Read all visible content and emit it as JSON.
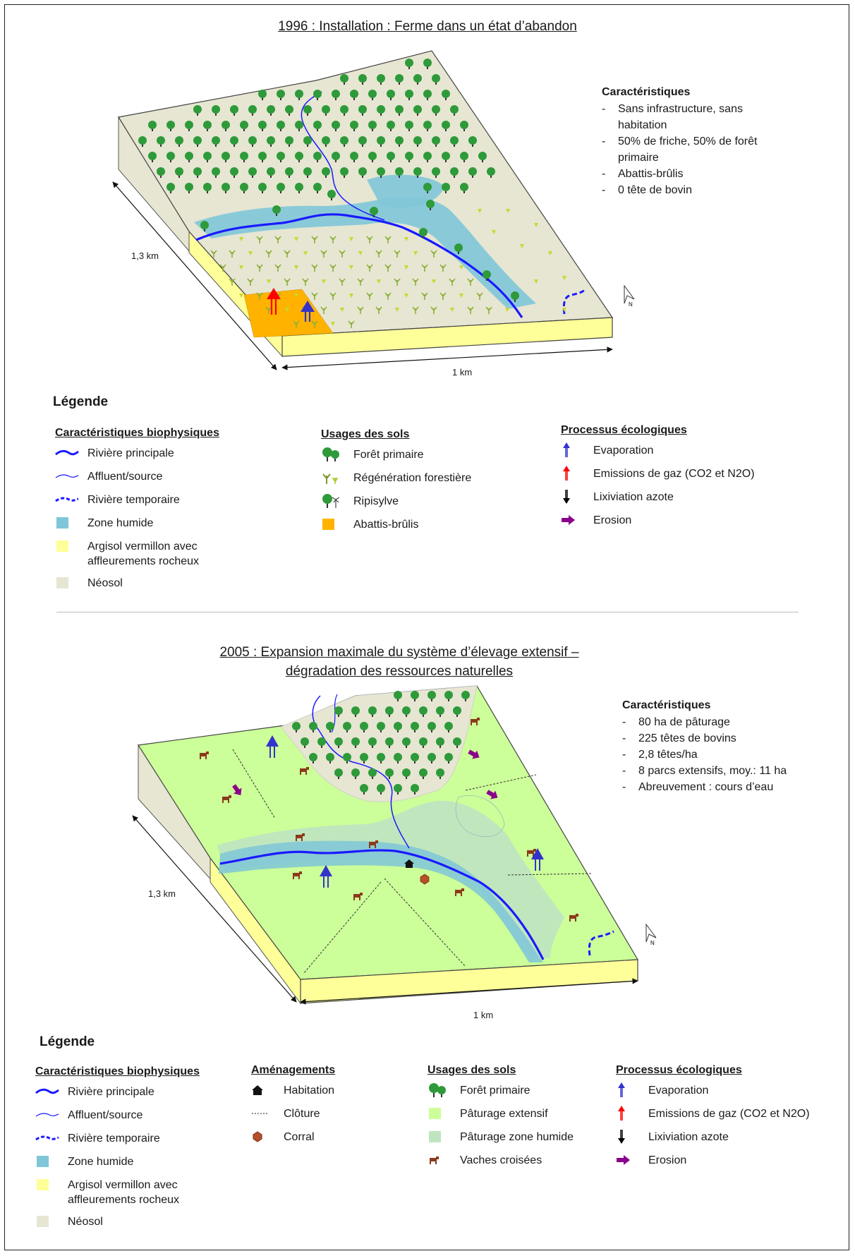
{
  "panels": [
    {
      "title_lines": [
        "1996 : Installation : Ferme dans un état d’abandon"
      ],
      "characteristics": {
        "title": "Caractéristiques",
        "items": [
          "Sans infrastructure, sans habitation",
          "50% de friche, 50% de forêt primaire",
          "Abattis-brûlis",
          "0 tête de bovin"
        ]
      },
      "dim_length": "1,3 km",
      "dim_width": "1 km",
      "legend": {
        "title": "Légende",
        "biophysical": {
          "title": "Caractéristiques biophysiques",
          "items": [
            "Rivière principale",
            "Affluent/source",
            "Rivière temporaire",
            "Zone humide",
            "Argisol vermillon avec affleurements rocheux",
            "Néosol"
          ]
        },
        "land_use": {
          "title": "Usages des sols",
          "items": [
            "Forêt primaire",
            "Régénération forestière",
            "Ripisylve",
            "Abattis-brûlis"
          ]
        },
        "processes": {
          "title": "Processus écologiques",
          "items": [
            "Evaporation",
            "Emissions de gaz (CO2 et N2O)",
            "Lixiviation azote",
            "Erosion"
          ]
        }
      }
    },
    {
      "title_lines": [
        "2005 : Expansion maximale du système d’élevage extensif –",
        "dégradation des ressources naturelles"
      ],
      "characteristics": {
        "title": "Caractéristiques",
        "items": [
          "80 ha de pâturage",
          "225 têtes de bovins",
          "2,8 têtes/ha",
          "8 parcs extensifs, moy.: 11 ha",
          "Abreuvement : cours d’eau"
        ]
      },
      "dim_length": "1,3 km",
      "dim_width": "1 km",
      "legend": {
        "title": "Légende",
        "biophysical": {
          "title": "Caractéristiques biophysiques",
          "items": [
            "Rivière principale",
            "Affluent/source",
            "Rivière temporaire",
            "Zone humide",
            "Argisol vermillon avec affleurements rocheux",
            "Néosol"
          ]
        },
        "facilities": {
          "title": "Aménagements",
          "items": [
            "Habitation",
            "Clôture",
            "Corral"
          ]
        },
        "land_use": {
          "title": "Usages des sols",
          "items": [
            "Forêt primaire",
            "Pâturage extensif",
            "Pâturage zone humide",
            "Vaches croisées"
          ]
        },
        "processes": {
          "title": "Processus écologiques",
          "items": [
            "Evaporation",
            "Emissions de gaz (CO2 et N2O)",
            "Lixiviation azote",
            "Erosion"
          ]
        }
      }
    }
  ],
  "colors": {
    "river": "#1a1aff",
    "wetland": "#7fc6d8",
    "argisol": "#ffff99",
    "neosol": "#e6e6d2",
    "pasture": "#ccff99",
    "wet_pasture": "#bfe5c0",
    "slash_burn": "#ffb300",
    "tree": "#2e9a3a",
    "regeneration": "#a8cc33",
    "cow": "#8b3a1a",
    "evaporation": "#3333cc",
    "gas": "#ff0000",
    "leaching": "#000000",
    "erosion": "#8b008b"
  }
}
